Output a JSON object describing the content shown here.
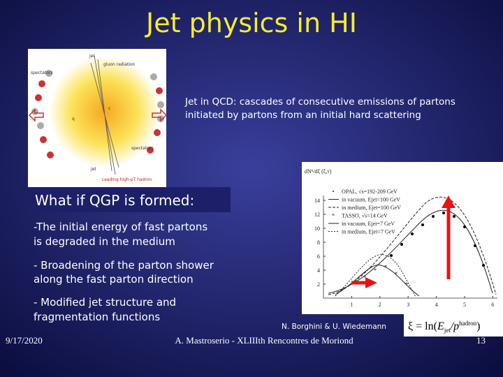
{
  "slide": {
    "title": "Jet physics in HI",
    "intro": [
      "Jet in QCD: cascades of consecutive emissions of partons",
      "initiated by partons  from an initial hard scattering"
    ],
    "question": "What if QGP is formed:",
    "bullets": [
      [
        "-The initial energy of fast partons",
        "is degraded in the medium"
      ],
      [
        "- Broadening of the parton shower",
        "along the fast parton direction"
      ],
      [
        "- Modified jet structure and",
        "fragmentation functions"
      ]
    ],
    "credit": "N. Borghini & U. Wiedemann",
    "footer": {
      "date": "9/17/2020",
      "center": "A. Mastroserio - XLIIIth Rencontres de Moriond",
      "page": "13"
    },
    "illustration": {
      "labels": [
        "jet",
        "gluon radiation",
        "spectators",
        "q",
        "c",
        "spectators",
        "jet",
        "Leading high-pT hadron"
      ]
    },
    "figure": {
      "ylabel": "dNʰ/dξ (ξ,τ)",
      "xticks": [
        1,
        2,
        3,
        4,
        5,
        6
      ],
      "yticks": [
        2,
        4,
        6,
        8,
        10,
        12,
        14
      ],
      "legend": [
        "OPAL, √s=192-209 GeV",
        "in vacuum, Ejet=100 GeV",
        "in medium, Ejet=100 GeV",
        "TASSO, √s=14 GeV",
        "in vacuum, Ejet=7 GeV",
        "in medium, Ejet=7 GeV"
      ]
    },
    "formula": {
      "lhs": "ξ = ln(",
      "e": "E",
      "sub": "jet",
      "slash": "/p",
      "sup": "hadron",
      "close": ")"
    }
  }
}
